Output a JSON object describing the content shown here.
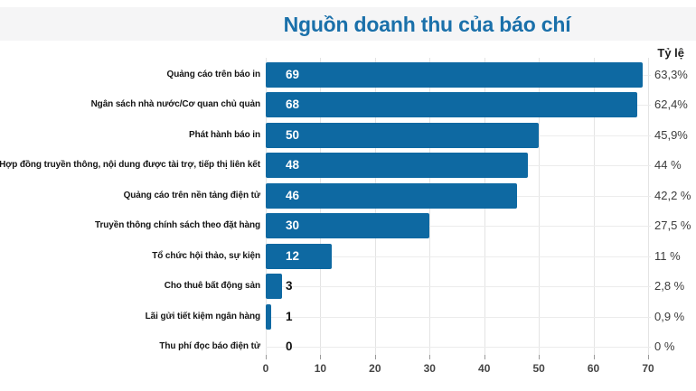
{
  "title": "Nguồn doanh thu của báo chí",
  "pct_header": "Tỷ lệ",
  "colors": {
    "bar": "#0e69a2",
    "title_text": "#1a70aa",
    "title_band_bg": "#f5f5f6",
    "gridline": "#e4e4e4"
  },
  "chart_data": {
    "type": "bar",
    "orientation": "horizontal",
    "title": "Nguồn doanh thu của báo chí",
    "xlabel": "",
    "ylabel": "",
    "right_column_header": "Tỷ lệ",
    "categories": [
      "Quảng cáo trên báo in",
      "Ngân sách nhà nước/Cơ quan chủ quản",
      "Phát hành báo in",
      "Hợp đồng truyền thông, nội dung được tài trợ, tiếp thị liên kết",
      "Quảng cáo trên nền tảng điện tử",
      "Truyền thông chính sách theo đặt hàng",
      "Tổ chức hội thảo, sự kiện",
      "Cho thuê bất động sản",
      "Lãi gửi tiết kiệm ngân hàng",
      "Thu phí đọc báo điện tử"
    ],
    "values": [
      69,
      68,
      50,
      48,
      46,
      30,
      12,
      3,
      1,
      0
    ],
    "percent_labels": [
      "63,3%",
      "62,4%",
      "45,9%",
      "44 %",
      "42,2 %",
      "27,5 %",
      "11 %",
      "2,8 %",
      "0,9 %",
      "0 %"
    ],
    "xlim": [
      0,
      70
    ],
    "x_ticks": [
      0,
      10,
      20,
      30,
      40,
      50,
      60,
      70
    ],
    "grid": true,
    "legend": false
  }
}
